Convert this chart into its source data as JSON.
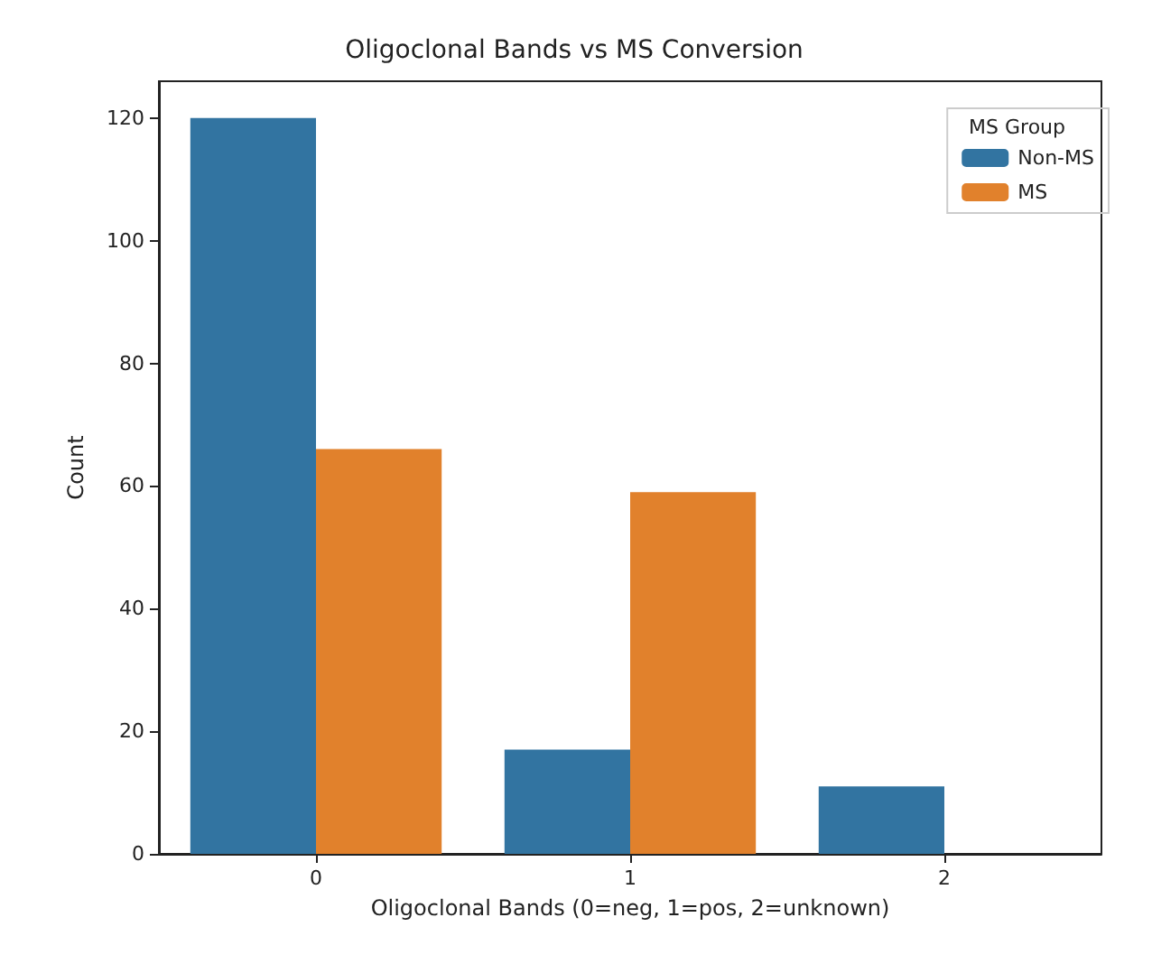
{
  "chart_data": {
    "type": "bar",
    "title": "Oligoclonal Bands vs MS Conversion",
    "xlabel": "Oligoclonal Bands (0=neg, 1=pos, 2=unknown)",
    "ylabel": "Count",
    "legend_title": "MS Group",
    "categories": [
      "0",
      "1",
      "2"
    ],
    "series": [
      {
        "name": "Non-MS",
        "color": "#3274a1",
        "values": [
          120,
          17,
          11
        ]
      },
      {
        "name": "MS",
        "color": "#e1812c",
        "values": [
          66,
          59,
          null
        ]
      }
    ],
    "ylim": [
      0,
      126
    ],
    "yticks": [
      0,
      20,
      40,
      60,
      80,
      100,
      120
    ],
    "grid": false,
    "legend": "top right"
  }
}
